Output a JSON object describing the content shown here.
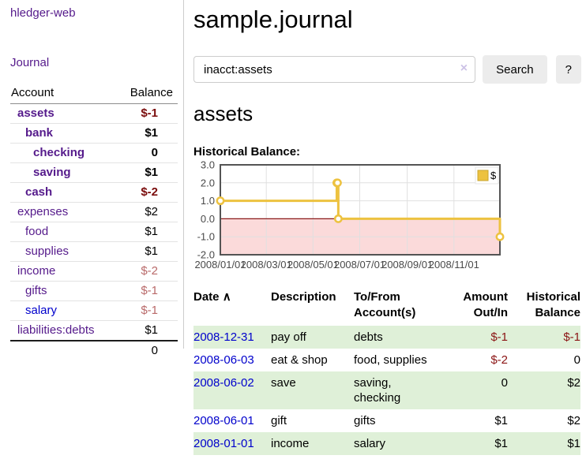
{
  "colors": {
    "link_visited": "#551a8b",
    "link_unvisited": "#0000cc",
    "negative_strong": "#7a0c0c",
    "negative_muted": "#b96a6a",
    "negative_register": "#8b1414",
    "row_stripe_green": "#dff0d8",
    "chart_line": "#edc240",
    "chart_negative_fill": "#fbdada",
    "chart_zero_line": "#8b1a1a",
    "chart_border": "#545454"
  },
  "sidebar": {
    "brand": "hledger-web",
    "nav_journal": "Journal",
    "accounts_table": {
      "headers": [
        "Account",
        "Balance"
      ],
      "rows": [
        {
          "account": "assets",
          "balance": "$-1",
          "indent": 1,
          "bold": true,
          "neg": "strong"
        },
        {
          "account": "bank",
          "balance": "$1",
          "indent": 2,
          "bold": true,
          "neg": ""
        },
        {
          "account": "checking",
          "balance": "0",
          "indent": 3,
          "bold": true,
          "neg": ""
        },
        {
          "account": "saving",
          "balance": "$1",
          "indent": 3,
          "bold": true,
          "neg": ""
        },
        {
          "account": "cash",
          "balance": "$-2",
          "indent": 2,
          "bold": true,
          "neg": "strong"
        },
        {
          "account": "expenses",
          "balance": "$2",
          "indent": 1,
          "bold": false,
          "neg": ""
        },
        {
          "account": "food",
          "balance": "$1",
          "indent": 2,
          "bold": false,
          "neg": ""
        },
        {
          "account": "supplies",
          "balance": "$1",
          "indent": 2,
          "bold": false,
          "neg": ""
        },
        {
          "account": "income",
          "balance": "$-2",
          "indent": 1,
          "bold": false,
          "neg": "muted"
        },
        {
          "account": "gifts",
          "balance": "$-1",
          "indent": 2,
          "bold": false,
          "neg": "muted"
        },
        {
          "account": "salary",
          "balance": "$-1",
          "indent": 2,
          "bold": false,
          "neg": "muted",
          "link_color": "blue"
        },
        {
          "account": "liabilities:debts",
          "balance": "$1",
          "indent": 1,
          "bold": false,
          "neg": ""
        }
      ],
      "total": "0"
    }
  },
  "main": {
    "title": "sample.journal",
    "search": {
      "value": "inacct:assets",
      "clear_icon": "×",
      "button_label": "Search",
      "help_label": "?"
    },
    "account_heading": "assets"
  },
  "chart_data": {
    "type": "line",
    "style": "step",
    "title": "Historical Balance:",
    "legend": {
      "label": "$",
      "position": "top-right"
    },
    "series": [
      {
        "name": "$",
        "dates": [
          "2008-01-01",
          "2008-06-01",
          "2008-06-02",
          "2008-06-03",
          "2008-12-31"
        ],
        "days": [
          0,
          152,
          153,
          154,
          365
        ],
        "values": [
          1,
          2,
          2,
          0,
          -1
        ]
      }
    ],
    "x_ticks": [
      {
        "label": "2008/01/01",
        "day": 0
      },
      {
        "label": "2008/03/01",
        "day": 60
      },
      {
        "label": "2008/05/01",
        "day": 121
      },
      {
        "label": "2008/07/01",
        "day": 182
      },
      {
        "label": "2008/09/01",
        "day": 244
      },
      {
        "label": "2008/11/01",
        "day": 305
      }
    ],
    "y_ticks": [
      "3.0",
      "2.0",
      "1.0",
      "0.0",
      "-1.0",
      "-2.0"
    ],
    "ylim": [
      -2,
      3
    ],
    "xlim_days": [
      0,
      365
    ],
    "grid": true,
    "negative_region_shaded": true
  },
  "register": {
    "columns": [
      "Date",
      "Description",
      "To/From Account(s)",
      "Amount Out/In",
      "Historical Balance"
    ],
    "sort_indicator": "∧",
    "rows": [
      {
        "date": "2008-12-31",
        "description": "pay off",
        "accounts": "debts",
        "amount": "$-1",
        "balance": "$-1",
        "amount_neg": true,
        "balance_neg": true,
        "stripe": true
      },
      {
        "date": "2008-06-03",
        "description": "eat & shop",
        "accounts": "food, supplies",
        "amount": "$-2",
        "balance": "0",
        "amount_neg": true,
        "balance_neg": false,
        "stripe": false
      },
      {
        "date": "2008-06-02",
        "description": "save",
        "accounts": "saving, checking",
        "amount": "0",
        "balance": "$2",
        "amount_neg": false,
        "balance_neg": false,
        "stripe": true
      },
      {
        "date": "2008-06-01",
        "description": "gift",
        "accounts": "gifts",
        "amount": "$1",
        "balance": "$2",
        "amount_neg": false,
        "balance_neg": false,
        "stripe": false
      },
      {
        "date": "2008-01-01",
        "description": "income",
        "accounts": "salary",
        "amount": "$1",
        "balance": "$1",
        "amount_neg": false,
        "balance_neg": false,
        "stripe": true
      }
    ]
  }
}
